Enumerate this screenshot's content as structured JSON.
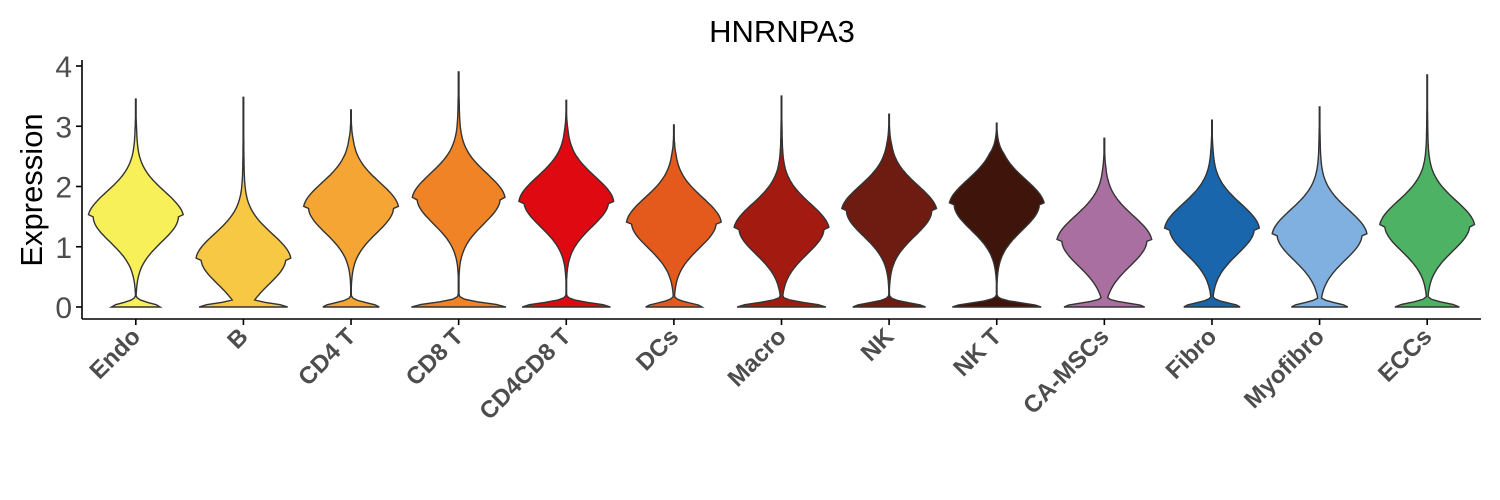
{
  "chart_data": {
    "type": "violin",
    "title": "HNRNPA3",
    "xlabel": "",
    "ylabel": "Expression",
    "ylim": [
      -0.2,
      4.1
    ],
    "yticks": [
      "0",
      "1",
      "2",
      "3",
      "4"
    ],
    "grid": false,
    "legend": "none",
    "categories": [
      "Endo",
      "B",
      "CD4 T",
      "CD8 T",
      "CD4CD8 T",
      "DCs",
      "Macro",
      "NK",
      "NK T",
      "CA-MSCs",
      "Fibro",
      "Myofibro",
      "ECCs"
    ],
    "colors": [
      "#F7F059",
      "#F6C844",
      "#F4A534",
      "#F08326",
      "#DF0A11",
      "#E45A1C",
      "#A31A10",
      "#6E1B11",
      "#3F150B",
      "#A86FA0",
      "#1A66AD",
      "#7FB0DF",
      "#4EB265"
    ],
    "max_values": [
      3.45,
      3.48,
      3.27,
      3.9,
      3.43,
      3.02,
      3.5,
      3.2,
      3.05,
      2.8,
      3.1,
      3.32,
      3.85
    ],
    "modes": [
      1.5,
      0.8,
      1.65,
      1.8,
      1.75,
      1.4,
      1.3,
      1.6,
      1.7,
      1.1,
      1.3,
      1.2,
      1.35
    ],
    "zero_fraction": [
      0.3,
      0.55,
      0.35,
      0.6,
      0.55,
      0.35,
      0.55,
      0.45,
      0.55,
      0.5,
      0.35,
      0.35,
      0.4
    ]
  }
}
